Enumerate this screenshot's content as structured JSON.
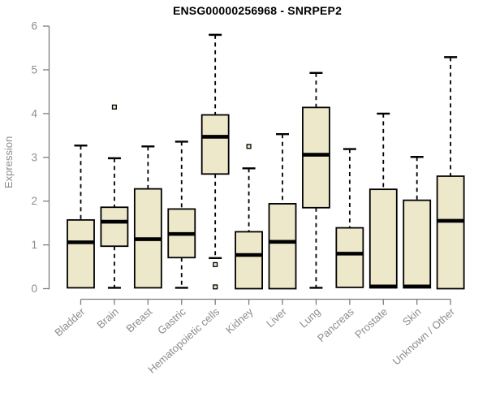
{
  "title": "ENSG00000256968 - SNRPEP2",
  "chart_data": {
    "type": "boxplot",
    "title": "ENSG00000256968 - SNRPEP2",
    "ylabel": "Expression",
    "xlabel": "",
    "ylim": [
      0,
      6
    ],
    "yticks": [
      0,
      1,
      2,
      3,
      4,
      5,
      6
    ],
    "grid": false,
    "legend": null,
    "colors": {
      "box_fill": "#EDE8CA",
      "box_border": "#000000",
      "median": "#000000",
      "whisker": "#000000",
      "axis": "#7E7E7E",
      "tick_label": "#8C8C8C",
      "title": "#000000",
      "background": "#FFFFFF"
    },
    "categories": [
      "Bladder",
      "Brain",
      "Breast",
      "Gastric",
      "Hematopoietic cells",
      "Kidney",
      "Liver",
      "Lung",
      "Pancreas",
      "Prostate",
      "Skin",
      "Unknown / Other"
    ],
    "boxes": [
      {
        "category": "Bladder",
        "whisker_low": 0.02,
        "q1": 0.02,
        "median": 1.06,
        "q3": 1.57,
        "whisker_high": 3.27,
        "outliers": []
      },
      {
        "category": "Brain",
        "whisker_low": 0.02,
        "q1": 0.97,
        "median": 1.53,
        "q3": 1.86,
        "whisker_high": 2.98,
        "outliers": [
          4.15
        ]
      },
      {
        "category": "Breast",
        "whisker_low": 0.02,
        "q1": 0.02,
        "median": 1.13,
        "q3": 2.28,
        "whisker_high": 3.25,
        "outliers": []
      },
      {
        "category": "Gastric",
        "whisker_low": 0.02,
        "q1": 0.71,
        "median": 1.25,
        "q3": 1.82,
        "whisker_high": 3.36,
        "outliers": []
      },
      {
        "category": "Hematopoietic cells",
        "whisker_low": 0.7,
        "q1": 2.62,
        "median": 3.47,
        "q3": 3.97,
        "whisker_high": 5.8,
        "outliers": [
          0.55,
          0.04
        ]
      },
      {
        "category": "Kidney",
        "whisker_low": 0.0,
        "q1": 0.0,
        "median": 0.77,
        "q3": 1.3,
        "whisker_high": 2.75,
        "outliers": [
          3.25
        ]
      },
      {
        "category": "Liver",
        "whisker_low": 0.0,
        "q1": 0.0,
        "median": 1.07,
        "q3": 1.94,
        "whisker_high": 3.53,
        "outliers": []
      },
      {
        "category": "Lung",
        "whisker_low": 0.02,
        "q1": 1.85,
        "median": 3.06,
        "q3": 4.14,
        "whisker_high": 4.93,
        "outliers": []
      },
      {
        "category": "Pancreas",
        "whisker_low": 0.03,
        "q1": 0.03,
        "median": 0.8,
        "q3": 1.39,
        "whisker_high": 3.19,
        "outliers": []
      },
      {
        "category": "Prostate",
        "whisker_low": 0.02,
        "q1": 0.02,
        "median": 0.05,
        "q3": 2.27,
        "whisker_high": 4.0,
        "outliers": []
      },
      {
        "category": "Skin",
        "whisker_low": 0.02,
        "q1": 0.02,
        "median": 0.05,
        "q3": 2.02,
        "whisker_high": 3.01,
        "outliers": []
      },
      {
        "category": "Unknown / Other",
        "whisker_low": 0.0,
        "q1": 0.0,
        "median": 1.55,
        "q3": 2.57,
        "whisker_high": 5.29,
        "outliers": []
      }
    ]
  }
}
